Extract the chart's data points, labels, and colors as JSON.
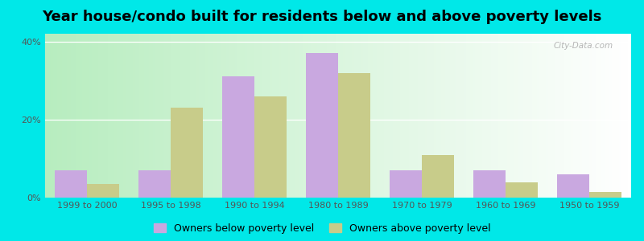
{
  "title": "Year house/condo built for residents below and above poverty levels",
  "categories": [
    "1999 to 2000",
    "1995 to 1998",
    "1990 to 1994",
    "1980 to 1989",
    "1970 to 1979",
    "1960 to 1969",
    "1950 to 1959"
  ],
  "below_poverty": [
    7,
    7,
    31,
    37,
    7,
    7,
    6
  ],
  "above_poverty": [
    3.5,
    23,
    26,
    32,
    11,
    4,
    1.5
  ],
  "below_color": "#c9a8e0",
  "above_color": "#c8cc8a",
  "outer_bg": "#00e8e8",
  "ylim": [
    0,
    42
  ],
  "yticks": [
    0,
    20,
    40
  ],
  "ytick_labels": [
    "0%",
    "20%",
    "40%"
  ],
  "bar_width": 0.38,
  "legend_below_label": "Owners below poverty level",
  "legend_above_label": "Owners above poverty level",
  "watermark": "City-Data.com",
  "title_fontsize": 13,
  "tick_fontsize": 8,
  "legend_fontsize": 9
}
